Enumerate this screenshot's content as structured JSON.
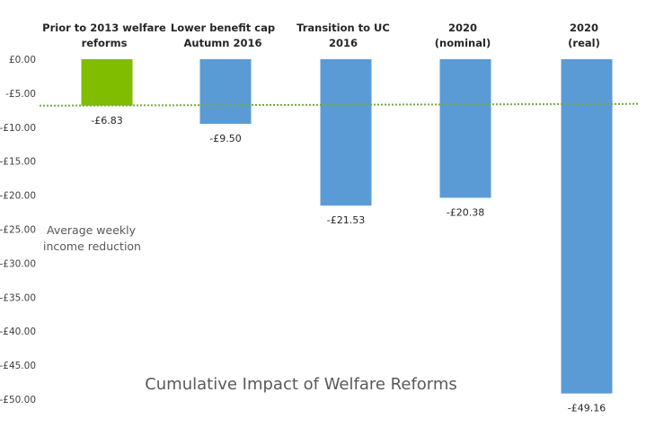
{
  "chart_data": {
    "type": "bar",
    "title": "Cumulative Impact of Welfare Reforms",
    "annotation": [
      "Average weekly",
      "income reduction"
    ],
    "categories": [
      [
        "Prior to 2013 welfare",
        "reforms"
      ],
      [
        "Lower benefit cap",
        "Autumn 2016"
      ],
      [
        "Transition to UC",
        "2016"
      ],
      [
        "2020",
        "(nominal)"
      ],
      [
        "2020",
        "(real)"
      ]
    ],
    "values": [
      -6.83,
      -9.5,
      -21.53,
      -20.38,
      -49.16
    ],
    "data_labels": [
      "-£6.83",
      "-£9.50",
      "-£21.53",
      "-£20.38",
      "-£49.16"
    ],
    "bar_colors": [
      "#80bc00",
      "#5b9bd5",
      "#5b9bd5",
      "#5b9bd5",
      "#5b9bd5"
    ],
    "ylim": [
      -50,
      0
    ],
    "yticks": [
      0,
      -5,
      -10,
      -15,
      -20,
      -25,
      -30,
      -35,
      -40,
      -45,
      -50
    ],
    "ytick_labels": [
      "£0.00",
      "-£5.00",
      "-£10.00",
      "-£15.00",
      "-£20.00",
      "-£25.00",
      "-£30.00",
      "-£35.00",
      "-£40.00",
      "-£45.00",
      "-£50.00"
    ],
    "reference_line": {
      "value": -6.83,
      "style": "dotted",
      "color": "#70ad47"
    },
    "xlabel": "",
    "ylabel": ""
  }
}
